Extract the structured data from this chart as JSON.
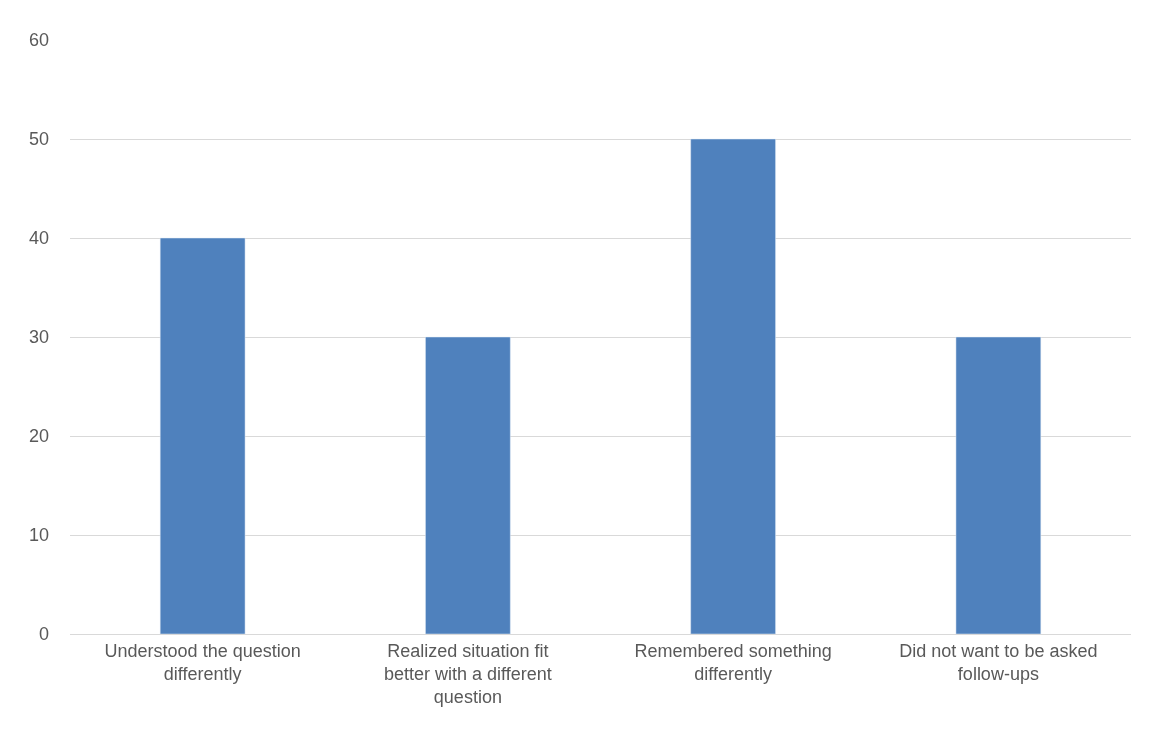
{
  "chart_data": {
    "type": "bar",
    "categories": [
      "Understood the question differently",
      "Realized situation fit better with a different question",
      "Remembered something differently",
      "Did not want to be asked follow-ups"
    ],
    "values": [
      40,
      30,
      50,
      30
    ],
    "color": "#4f81bd",
    "ylim": [
      0,
      60
    ],
    "yticks": [
      0,
      10,
      20,
      30,
      40,
      50,
      60
    ],
    "grid": "y",
    "legend": false
  }
}
